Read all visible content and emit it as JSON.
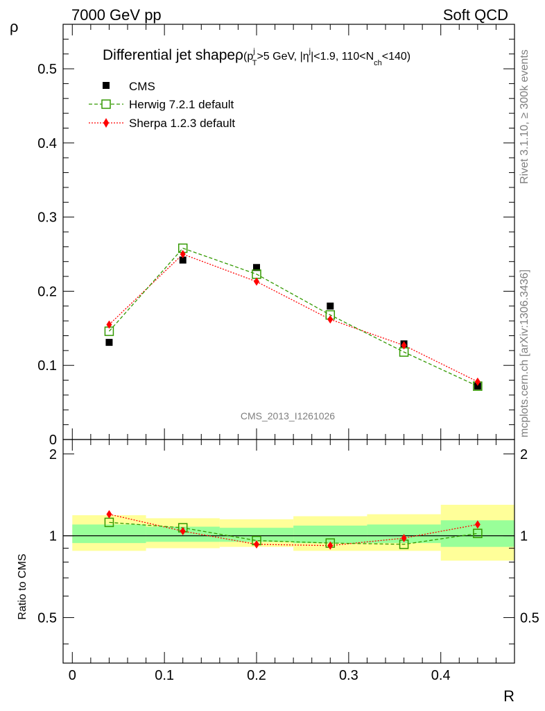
{
  "header": {
    "left": "7000 GeV pp",
    "right": "Soft QCD"
  },
  "side_labels": {
    "rivet": "Rivet 3.1.10, ≥ 300k events",
    "mcplots": "mcplots.cern.ch [arXiv:1306.3436]"
  },
  "watermark": "CMS_2013_I1261026",
  "title": {
    "main": "Differential jet shapeρ",
    "p": "(p",
    "p_sup": "j",
    "p_sub": "T",
    "mid": ">5 GeV, |η",
    "eta_sup": "j",
    "tail1": "|<1.9, 110<N",
    "n_sub": "ch",
    "tail2": "<140)"
  },
  "colors": {
    "data": "#000000",
    "herwig": "#339900",
    "sherpa": "#ff0000",
    "band_inner": "#99ff99",
    "band_outer": "#ffff99",
    "side_text": "#7f7f7f"
  },
  "chart_data": [
    {
      "type": "scatter",
      "panel": "main",
      "xlabel": "R",
      "ylabel": "ρ",
      "xlim": [
        -0.01,
        0.48
      ],
      "ylim": [
        0,
        0.56
      ],
      "yticks": [
        0,
        0.1,
        0.2,
        0.3,
        0.4,
        0.5
      ],
      "ytick_labels": [
        "0",
        "0.1",
        "0.2",
        "0.3",
        "0.4",
        "0.5"
      ],
      "x": [
        0.04,
        0.12,
        0.2,
        0.28,
        0.36,
        0.44
      ],
      "bin_edges": [
        0.0,
        0.08,
        0.16,
        0.24,
        0.32,
        0.4,
        0.48
      ],
      "series": [
        {
          "name": "CMS",
          "values": [
            0.131,
            0.242,
            0.232,
            0.18,
            0.129,
            0.072
          ]
        },
        {
          "name": "Herwig 7.2.1 default",
          "values": [
            0.146,
            0.258,
            0.223,
            0.168,
            0.118,
            0.072
          ]
        },
        {
          "name": "Sherpa 1.2.3 default",
          "values": [
            0.155,
            0.25,
            0.213,
            0.162,
            0.127,
            0.078
          ]
        }
      ]
    },
    {
      "type": "line",
      "panel": "ratio",
      "xlabel": "R",
      "ylabel": "Ratio to CMS",
      "xlim": [
        -0.01,
        0.48
      ],
      "ylim": [
        0.34,
        2.26
      ],
      "yticks": [
        0.5,
        1,
        2
      ],
      "ytick_labels": [
        "0.5",
        "1",
        "2"
      ],
      "xticks": [
        0,
        0.1,
        0.2,
        0.3,
        0.4
      ],
      "xtick_labels": [
        "0",
        "0.1",
        "0.2",
        "0.3",
        "0.4"
      ],
      "x": [
        0.04,
        0.12,
        0.2,
        0.28,
        0.36,
        0.44
      ],
      "bin_edges": [
        0.0,
        0.08,
        0.16,
        0.24,
        0.32,
        0.4,
        0.48
      ],
      "band_inner": [
        [
          0.94,
          1.1
        ],
        [
          0.95,
          1.08
        ],
        [
          0.95,
          1.07
        ],
        [
          0.94,
          1.09
        ],
        [
          0.94,
          1.1
        ],
        [
          0.91,
          1.14
        ]
      ],
      "band_outer": [
        [
          0.88,
          1.19
        ],
        [
          0.9,
          1.16
        ],
        [
          0.91,
          1.15
        ],
        [
          0.88,
          1.18
        ],
        [
          0.88,
          1.2
        ],
        [
          0.81,
          1.3
        ]
      ],
      "series": [
        {
          "name": "Herwig 7.2.1 default",
          "values": [
            1.12,
            1.07,
            0.96,
            0.94,
            0.93,
            1.02
          ]
        },
        {
          "name": "Sherpa 1.2.3 default",
          "values": [
            1.2,
            1.04,
            0.93,
            0.92,
            0.98,
            1.1
          ]
        }
      ]
    }
  ]
}
